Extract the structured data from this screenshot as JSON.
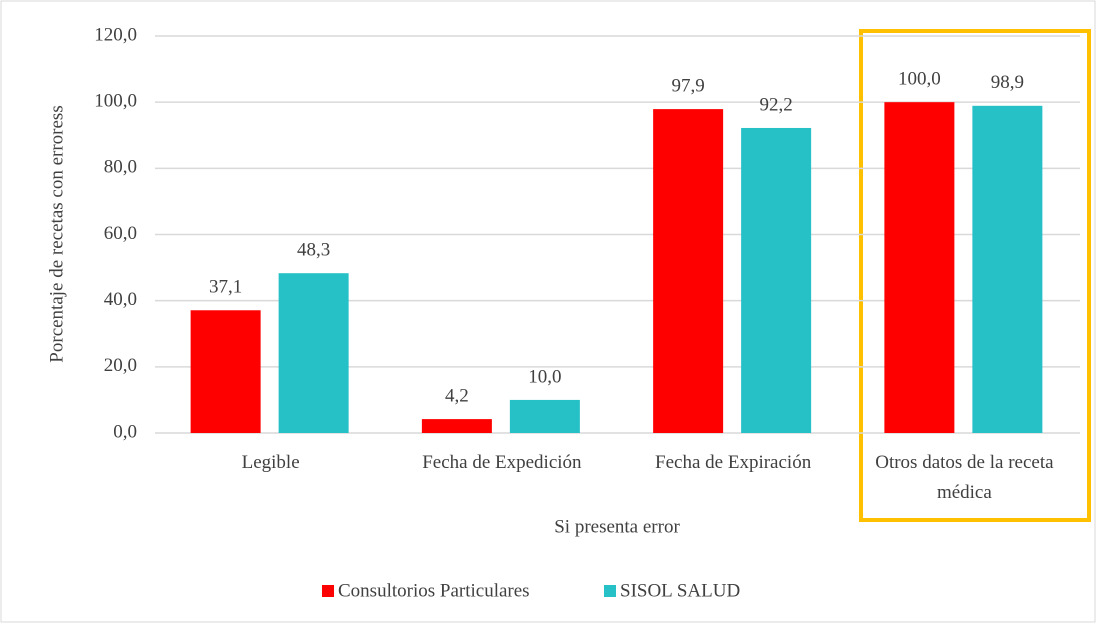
{
  "chart_data": {
    "type": "bar",
    "y_axis_label": "Porcentaje de recetas con erroress",
    "x_axis_label": "Si presenta error",
    "categories": [
      "Legible",
      "Fecha de Expedición",
      "Fecha de Expiración",
      "Otros datos de la receta médica"
    ],
    "series": [
      {
        "name": "Consultorios Particulares",
        "color": "#ff0000",
        "values": [
          37.1,
          4.2,
          97.9,
          100.0
        ],
        "value_labels": [
          "37,1",
          "4,2",
          "97,9",
          "100,0"
        ]
      },
      {
        "name": "SISOL SALUD",
        "color": "#26c0c7",
        "values": [
          48.3,
          10.0,
          92.2,
          98.9
        ],
        "value_labels": [
          "48,3",
          "10,0",
          "92,2",
          "98,9"
        ]
      }
    ],
    "ylim": [
      0,
      120
    ],
    "yticks": [
      {
        "value": 0,
        "label": "0,0"
      },
      {
        "value": 20,
        "label": "20,0"
      },
      {
        "value": 40,
        "label": "40,0"
      },
      {
        "value": 60,
        "label": "60,0"
      },
      {
        "value": 80,
        "label": "80,0"
      },
      {
        "value": 100,
        "label": "100,0"
      },
      {
        "value": 120,
        "label": "120,0"
      }
    ],
    "grid": true,
    "legend": "bottom"
  }
}
